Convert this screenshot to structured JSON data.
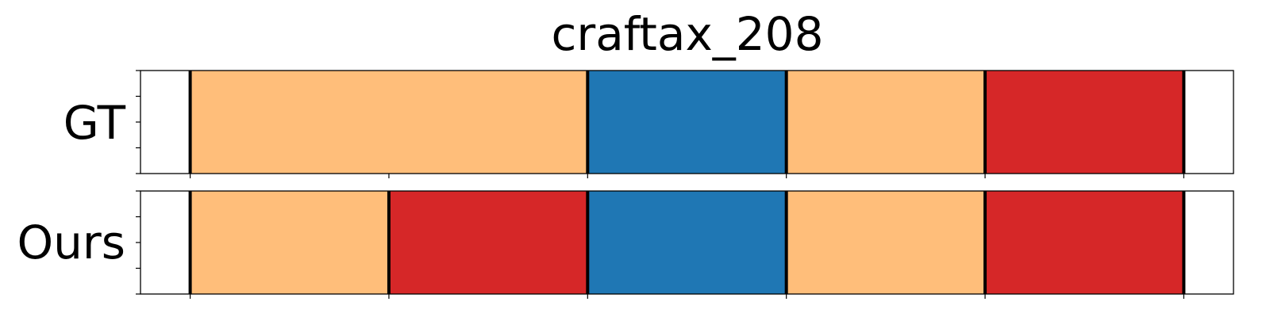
{
  "chart_data": {
    "type": "segmentation-timeline",
    "title": "craftax_208",
    "x_range": [
      0,
      1100
    ],
    "x_ticks": [
      50,
      250,
      450,
      650,
      850,
      1050
    ],
    "rows": [
      {
        "label": "GT",
        "segments": [
          {
            "start": 50,
            "end": 450,
            "color": "#ffbe7a"
          },
          {
            "start": 450,
            "end": 650,
            "color": "#1f77b4"
          },
          {
            "start": 650,
            "end": 850,
            "color": "#ffbe7a"
          },
          {
            "start": 850,
            "end": 1050,
            "color": "#d62728"
          }
        ],
        "boundaries": [
          50,
          450,
          650,
          850,
          1050
        ]
      },
      {
        "label": "Ours",
        "segments": [
          {
            "start": 50,
            "end": 250,
            "color": "#ffbe7a"
          },
          {
            "start": 250,
            "end": 450,
            "color": "#d62728"
          },
          {
            "start": 450,
            "end": 650,
            "color": "#1f77b4"
          },
          {
            "start": 650,
            "end": 850,
            "color": "#ffbe7a"
          },
          {
            "start": 850,
            "end": 1050,
            "color": "#d62728"
          }
        ],
        "boundaries": [
          50,
          250,
          450,
          650,
          850,
          1050
        ]
      }
    ]
  }
}
